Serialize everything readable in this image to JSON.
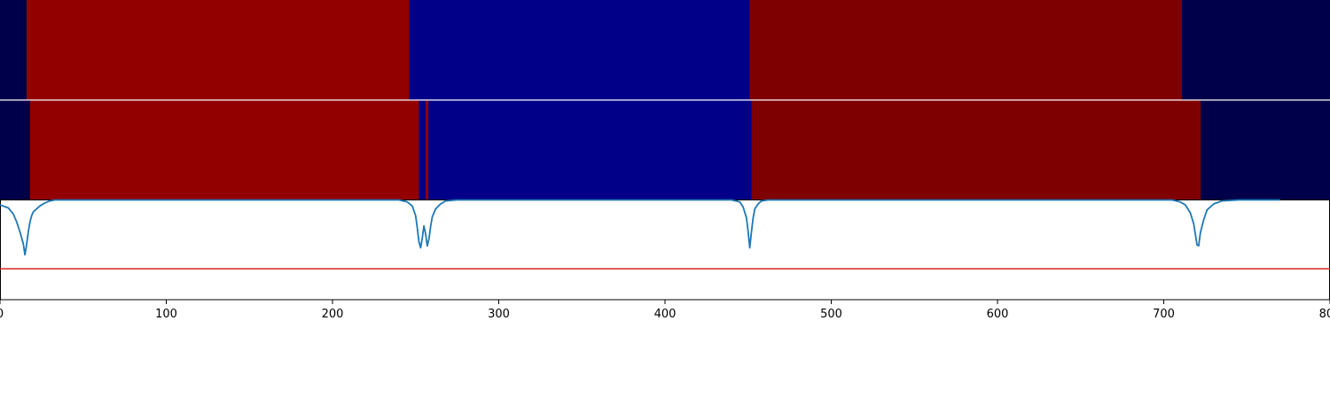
{
  "chart_data": [
    {
      "type": "heatmap",
      "panel": "top-segmentation",
      "xlim": [
        0,
        800
      ],
      "segments": [
        {
          "start": 0,
          "end": 16,
          "color": "#00004a"
        },
        {
          "start": 16,
          "end": 246,
          "color": "#920000"
        },
        {
          "start": 246,
          "end": 451,
          "color": "#000088"
        },
        {
          "start": 451,
          "end": 711,
          "color": "#7f0000"
        },
        {
          "start": 711,
          "end": 800,
          "color": "#00004a"
        }
      ]
    },
    {
      "type": "heatmap",
      "panel": "middle-segmentation",
      "xlim": [
        0,
        800
      ],
      "segments": [
        {
          "start": 0,
          "end": 18,
          "color": "#00004a"
        },
        {
          "start": 18,
          "end": 252,
          "color": "#920000"
        },
        {
          "start": 252,
          "end": 256,
          "color": "#000088"
        },
        {
          "start": 256,
          "end": 257.5,
          "color": "#920000"
        },
        {
          "start": 257.5,
          "end": 452,
          "color": "#000088"
        },
        {
          "start": 452,
          "end": 722,
          "color": "#7f0000"
        },
        {
          "start": 722,
          "end": 800,
          "color": "#00004a"
        }
      ]
    },
    {
      "type": "line",
      "panel": "bottom-signal",
      "xlim": [
        0,
        800
      ],
      "ylim": [
        0,
        1
      ],
      "threshold": 0.31,
      "colors": {
        "signal": "#1f77b4",
        "threshold": "#d62728"
      },
      "x": [
        0,
        5,
        8,
        10,
        12,
        14,
        15,
        16,
        17,
        18,
        19,
        20,
        22,
        24,
        27,
        30,
        33,
        40,
        240,
        245,
        248,
        250,
        251,
        252,
        253,
        254,
        255,
        256,
        257,
        258,
        259,
        260,
        262,
        265,
        268,
        275,
        290,
        440,
        445,
        447,
        449,
        450,
        451,
        452,
        453,
        454,
        456,
        458,
        462,
        470,
        705,
        710,
        713,
        716,
        718,
        719,
        720,
        721,
        722,
        724,
        726,
        730,
        735,
        745,
        770
      ],
      "values": [
        0.95,
        0.92,
        0.86,
        0.78,
        0.68,
        0.56,
        0.45,
        0.55,
        0.68,
        0.78,
        0.84,
        0.88,
        0.91,
        0.94,
        0.97,
        0.99,
        1.0,
        1.0,
        1.0,
        0.98,
        0.94,
        0.84,
        0.72,
        0.58,
        0.52,
        0.62,
        0.74,
        0.66,
        0.54,
        0.61,
        0.73,
        0.83,
        0.91,
        0.96,
        0.99,
        1.0,
        1.0,
        1.0,
        0.98,
        0.93,
        0.82,
        0.68,
        0.52,
        0.68,
        0.82,
        0.91,
        0.96,
        0.99,
        1.0,
        1.0,
        1.0,
        0.98,
        0.95,
        0.87,
        0.76,
        0.66,
        0.55,
        0.54,
        0.67,
        0.8,
        0.9,
        0.96,
        0.99,
        1.0,
        1.0
      ]
    }
  ],
  "x_axis": {
    "ticks": [
      0,
      100,
      200,
      300,
      400,
      500,
      600,
      700,
      800
    ],
    "tick_labels": [
      "0",
      "100",
      "200",
      "300",
      "400",
      "500",
      "600",
      "700",
      "800"
    ]
  },
  "frame_color": "#000000"
}
